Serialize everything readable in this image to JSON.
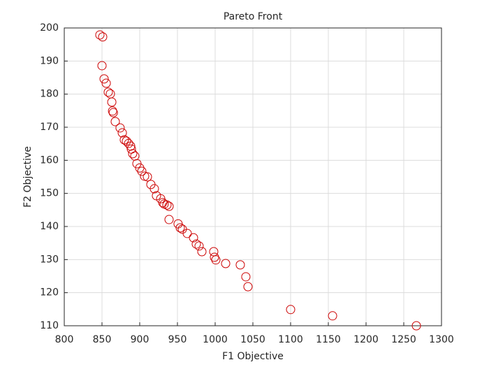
{
  "chart_data": {
    "type": "scatter",
    "title": "Pareto Front",
    "xlabel": "F1 Objective",
    "ylabel": "F2 Objective",
    "x": [
      847.2,
      850.9,
      850,
      852.8,
      855.6,
      858.3,
      861.1,
      863,
      864,
      865,
      867.6,
      874,
      876.9,
      879.6,
      882.4,
      885.2,
      888,
      888.9,
      890.7,
      893.5,
      896.3,
      900,
      902.8,
      906.5,
      910.2,
      914.8,
      919.4,
      922.2,
      927.8,
      930.6,
      932.4,
      936.1,
      938.9,
      938.9,
      950.9,
      953.7,
      956.5,
      963,
      971.3,
      975,
      978.7,
      982.4,
      998.1,
      999.1,
      1000.9,
      1013.9,
      1033.3,
      1040.7,
      1043.5,
      1100,
      1155.6,
      1266.7
    ],
    "values": [
      197.9,
      197.3,
      188.6,
      184.6,
      183.3,
      180.6,
      180.1,
      177.6,
      174.9,
      174.4,
      171.7,
      169.8,
      168.3,
      166.2,
      165.8,
      165.1,
      164.3,
      163.4,
      162,
      161.3,
      159,
      157.7,
      156.7,
      155.2,
      155,
      152.7,
      151.4,
      149.3,
      148.4,
      147.2,
      146.8,
      146.5,
      146.1,
      142.1,
      140.8,
      139.6,
      139.2,
      137.9,
      136.6,
      134.7,
      134.1,
      132.4,
      132.4,
      130.7,
      129.9,
      128.8,
      128.4,
      124.8,
      121.8,
      114.9,
      113,
      110
    ],
    "color": "#cc0000",
    "xlim": [
      800,
      1300
    ],
    "xticks": [
      800,
      850,
      900,
      950,
      1000,
      1050,
      1100,
      1150,
      1200,
      1250,
      1300
    ],
    "ylim": [
      110,
      200
    ],
    "yticks": [
      110,
      120,
      130,
      140,
      150,
      160,
      170,
      180,
      190,
      200
    ],
    "grid": true
  }
}
